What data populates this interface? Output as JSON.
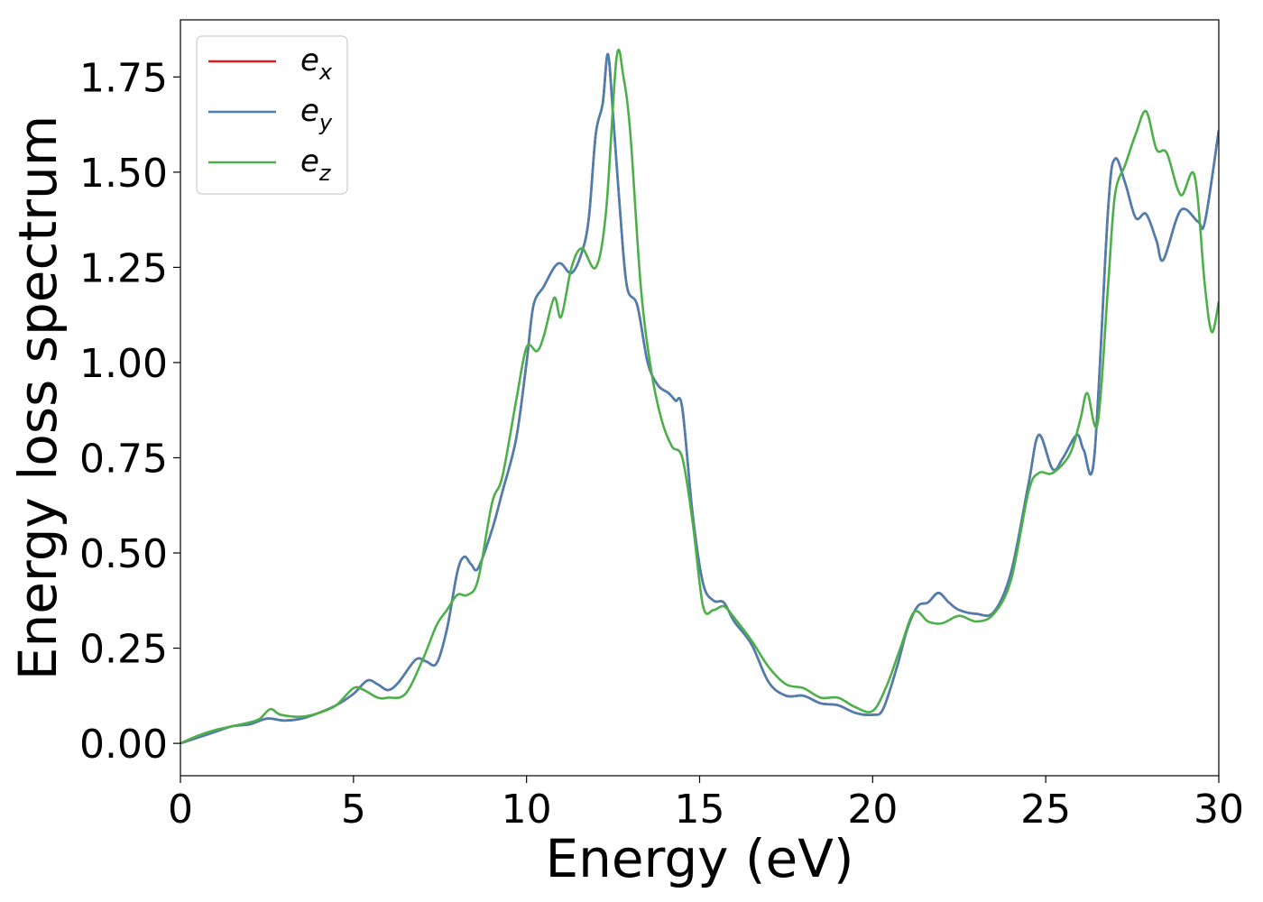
{
  "chart_data": {
    "type": "line",
    "xlabel": "Energy (eV)",
    "ylabel": "Energy loss spectrum",
    "xlim": [
      0,
      30
    ],
    "ylim": [
      -0.085,
      1.9
    ],
    "xticks": [
      0,
      5,
      10,
      15,
      20,
      25,
      30
    ],
    "xtick_labels": [
      "0",
      "5",
      "10",
      "15",
      "20",
      "25",
      "30"
    ],
    "yticks": [
      0.0,
      0.25,
      0.5,
      0.75,
      1.0,
      1.25,
      1.5,
      1.75
    ],
    "ytick_labels": [
      "0.00",
      "0.25",
      "0.50",
      "0.75",
      "1.00",
      "1.25",
      "1.50",
      "1.75"
    ],
    "grid": false,
    "legend_position": "top-left",
    "series": [
      {
        "legend_base": "e",
        "legend_sub": "x",
        "color": "#e41a1c",
        "points": [
          [
            0,
            0.0
          ],
          [
            0.5,
            0.015
          ],
          [
            1,
            0.03
          ],
          [
            1.5,
            0.045
          ],
          [
            2,
            0.05
          ],
          [
            2.5,
            0.065
          ],
          [
            3,
            0.06
          ],
          [
            3.5,
            0.065
          ],
          [
            4,
            0.08
          ],
          [
            4.5,
            0.1
          ],
          [
            5,
            0.13
          ],
          [
            5.4,
            0.165
          ],
          [
            5.7,
            0.155
          ],
          [
            6,
            0.14
          ],
          [
            6.3,
            0.16
          ],
          [
            6.8,
            0.22
          ],
          [
            7.1,
            0.215
          ],
          [
            7.4,
            0.21
          ],
          [
            7.7,
            0.3
          ],
          [
            8,
            0.45
          ],
          [
            8.2,
            0.49
          ],
          [
            8.4,
            0.47
          ],
          [
            8.6,
            0.46
          ],
          [
            9,
            0.56
          ],
          [
            9.3,
            0.66
          ],
          [
            9.7,
            0.8
          ],
          [
            10,
            1.0
          ],
          [
            10.2,
            1.15
          ],
          [
            10.5,
            1.2
          ],
          [
            10.8,
            1.25
          ],
          [
            11,
            1.26
          ],
          [
            11.3,
            1.235
          ],
          [
            11.6,
            1.29
          ],
          [
            11.8,
            1.38
          ],
          [
            12,
            1.6
          ],
          [
            12.2,
            1.68
          ],
          [
            12.35,
            1.81
          ],
          [
            12.5,
            1.65
          ],
          [
            12.7,
            1.4
          ],
          [
            12.9,
            1.2
          ],
          [
            13.2,
            1.15
          ],
          [
            13.5,
            1.0
          ],
          [
            13.8,
            0.94
          ],
          [
            14.1,
            0.92
          ],
          [
            14.3,
            0.9
          ],
          [
            14.5,
            0.88
          ],
          [
            14.8,
            0.6
          ],
          [
            15.1,
            0.42
          ],
          [
            15.4,
            0.375
          ],
          [
            15.7,
            0.37
          ],
          [
            16,
            0.32
          ],
          [
            16.5,
            0.26
          ],
          [
            17,
            0.16
          ],
          [
            17.5,
            0.125
          ],
          [
            18,
            0.125
          ],
          [
            18.5,
            0.105
          ],
          [
            19,
            0.1
          ],
          [
            19.5,
            0.08
          ],
          [
            20,
            0.075
          ],
          [
            20.3,
            0.09
          ],
          [
            20.7,
            0.2
          ],
          [
            21,
            0.3
          ],
          [
            21.3,
            0.36
          ],
          [
            21.6,
            0.37
          ],
          [
            21.9,
            0.395
          ],
          [
            22.2,
            0.37
          ],
          [
            22.5,
            0.35
          ],
          [
            23,
            0.34
          ],
          [
            23.5,
            0.345
          ],
          [
            24,
            0.45
          ],
          [
            24.5,
            0.68
          ],
          [
            24.8,
            0.81
          ],
          [
            25.2,
            0.72
          ],
          [
            25.5,
            0.75
          ],
          [
            25.9,
            0.81
          ],
          [
            26.1,
            0.77
          ],
          [
            26.4,
            0.75
          ],
          [
            26.8,
            1.4
          ],
          [
            27,
            1.535
          ],
          [
            27.3,
            1.47
          ],
          [
            27.6,
            1.38
          ],
          [
            27.9,
            1.39
          ],
          [
            28.2,
            1.32
          ],
          [
            28.4,
            1.27
          ],
          [
            28.9,
            1.4
          ],
          [
            29.4,
            1.37
          ],
          [
            29.6,
            1.37
          ],
          [
            30,
            1.61
          ]
        ]
      },
      {
        "legend_base": "e",
        "legend_sub": "y",
        "color": "#4a7fb0",
        "points": [
          [
            0,
            0.0
          ],
          [
            0.5,
            0.015
          ],
          [
            1,
            0.03
          ],
          [
            1.5,
            0.045
          ],
          [
            2,
            0.05
          ],
          [
            2.5,
            0.065
          ],
          [
            3,
            0.06
          ],
          [
            3.5,
            0.065
          ],
          [
            4,
            0.08
          ],
          [
            4.5,
            0.1
          ],
          [
            5,
            0.13
          ],
          [
            5.4,
            0.165
          ],
          [
            5.7,
            0.155
          ],
          [
            6,
            0.14
          ],
          [
            6.3,
            0.16
          ],
          [
            6.8,
            0.22
          ],
          [
            7.1,
            0.215
          ],
          [
            7.4,
            0.21
          ],
          [
            7.7,
            0.3
          ],
          [
            8,
            0.45
          ],
          [
            8.2,
            0.49
          ],
          [
            8.4,
            0.47
          ],
          [
            8.6,
            0.46
          ],
          [
            9,
            0.56
          ],
          [
            9.3,
            0.66
          ],
          [
            9.7,
            0.8
          ],
          [
            10,
            1.0
          ],
          [
            10.2,
            1.15
          ],
          [
            10.5,
            1.2
          ],
          [
            10.8,
            1.25
          ],
          [
            11,
            1.26
          ],
          [
            11.3,
            1.235
          ],
          [
            11.6,
            1.29
          ],
          [
            11.8,
            1.38
          ],
          [
            12,
            1.6
          ],
          [
            12.2,
            1.68
          ],
          [
            12.35,
            1.81
          ],
          [
            12.5,
            1.65
          ],
          [
            12.7,
            1.4
          ],
          [
            12.9,
            1.2
          ],
          [
            13.2,
            1.15
          ],
          [
            13.5,
            1.0
          ],
          [
            13.8,
            0.94
          ],
          [
            14.1,
            0.92
          ],
          [
            14.3,
            0.9
          ],
          [
            14.5,
            0.88
          ],
          [
            14.8,
            0.6
          ],
          [
            15.1,
            0.42
          ],
          [
            15.4,
            0.375
          ],
          [
            15.7,
            0.37
          ],
          [
            16,
            0.32
          ],
          [
            16.5,
            0.26
          ],
          [
            17,
            0.16
          ],
          [
            17.5,
            0.125
          ],
          [
            18,
            0.125
          ],
          [
            18.5,
            0.105
          ],
          [
            19,
            0.1
          ],
          [
            19.5,
            0.08
          ],
          [
            20,
            0.075
          ],
          [
            20.3,
            0.09
          ],
          [
            20.7,
            0.2
          ],
          [
            21,
            0.3
          ],
          [
            21.3,
            0.36
          ],
          [
            21.6,
            0.37
          ],
          [
            21.9,
            0.395
          ],
          [
            22.2,
            0.37
          ],
          [
            22.5,
            0.35
          ],
          [
            23,
            0.34
          ],
          [
            23.5,
            0.345
          ],
          [
            24,
            0.45
          ],
          [
            24.5,
            0.68
          ],
          [
            24.8,
            0.81
          ],
          [
            25.2,
            0.72
          ],
          [
            25.5,
            0.75
          ],
          [
            25.9,
            0.81
          ],
          [
            26.1,
            0.77
          ],
          [
            26.4,
            0.75
          ],
          [
            26.8,
            1.4
          ],
          [
            27,
            1.535
          ],
          [
            27.3,
            1.47
          ],
          [
            27.6,
            1.38
          ],
          [
            27.9,
            1.39
          ],
          [
            28.2,
            1.32
          ],
          [
            28.4,
            1.27
          ],
          [
            28.9,
            1.4
          ],
          [
            29.4,
            1.37
          ],
          [
            29.6,
            1.37
          ],
          [
            30,
            1.61
          ]
        ]
      },
      {
        "legend_base": "e",
        "legend_sub": "z",
        "color": "#4daf4a",
        "points": [
          [
            0,
            0.0
          ],
          [
            0.5,
            0.02
          ],
          [
            1,
            0.035
          ],
          [
            1.5,
            0.045
          ],
          [
            2,
            0.055
          ],
          [
            2.3,
            0.065
          ],
          [
            2.6,
            0.09
          ],
          [
            2.9,
            0.075
          ],
          [
            3.5,
            0.07
          ],
          [
            4,
            0.08
          ],
          [
            4.5,
            0.1
          ],
          [
            5,
            0.145
          ],
          [
            5.3,
            0.14
          ],
          [
            5.7,
            0.12
          ],
          [
            6,
            0.12
          ],
          [
            6.5,
            0.13
          ],
          [
            7,
            0.22
          ],
          [
            7.4,
            0.31
          ],
          [
            7.7,
            0.35
          ],
          [
            8,
            0.39
          ],
          [
            8.3,
            0.39
          ],
          [
            8.6,
            0.43
          ],
          [
            9,
            0.63
          ],
          [
            9.3,
            0.7
          ],
          [
            9.7,
            0.9
          ],
          [
            10,
            1.04
          ],
          [
            10.3,
            1.03
          ],
          [
            10.5,
            1.07
          ],
          [
            10.8,
            1.17
          ],
          [
            11,
            1.12
          ],
          [
            11.3,
            1.25
          ],
          [
            11.6,
            1.3
          ],
          [
            12,
            1.25
          ],
          [
            12.3,
            1.4
          ],
          [
            12.6,
            1.8
          ],
          [
            12.8,
            1.75
          ],
          [
            13,
            1.6
          ],
          [
            13.3,
            1.2
          ],
          [
            13.6,
            0.98
          ],
          [
            13.9,
            0.85
          ],
          [
            14.2,
            0.78
          ],
          [
            14.5,
            0.75
          ],
          [
            14.8,
            0.58
          ],
          [
            15.1,
            0.36
          ],
          [
            15.4,
            0.35
          ],
          [
            15.7,
            0.36
          ],
          [
            16,
            0.33
          ],
          [
            16.5,
            0.27
          ],
          [
            17,
            0.2
          ],
          [
            17.5,
            0.155
          ],
          [
            18,
            0.145
          ],
          [
            18.5,
            0.12
          ],
          [
            19,
            0.12
          ],
          [
            19.5,
            0.095
          ],
          [
            20,
            0.085
          ],
          [
            20.4,
            0.15
          ],
          [
            20.8,
            0.25
          ],
          [
            21.2,
            0.345
          ],
          [
            21.6,
            0.32
          ],
          [
            22,
            0.315
          ],
          [
            22.5,
            0.335
          ],
          [
            23,
            0.32
          ],
          [
            23.5,
            0.34
          ],
          [
            24,
            0.43
          ],
          [
            24.5,
            0.66
          ],
          [
            24.8,
            0.71
          ],
          [
            25.2,
            0.71
          ],
          [
            25.7,
            0.76
          ],
          [
            26,
            0.85
          ],
          [
            26.2,
            0.92
          ],
          [
            26.5,
            0.84
          ],
          [
            26.8,
            1.2
          ],
          [
            27,
            1.44
          ],
          [
            27.3,
            1.52
          ],
          [
            27.6,
            1.6
          ],
          [
            27.9,
            1.66
          ],
          [
            28.2,
            1.56
          ],
          [
            28.5,
            1.55
          ],
          [
            28.9,
            1.44
          ],
          [
            29.3,
            1.49
          ],
          [
            29.6,
            1.2
          ],
          [
            29.8,
            1.08
          ],
          [
            30,
            1.16
          ]
        ]
      }
    ]
  }
}
